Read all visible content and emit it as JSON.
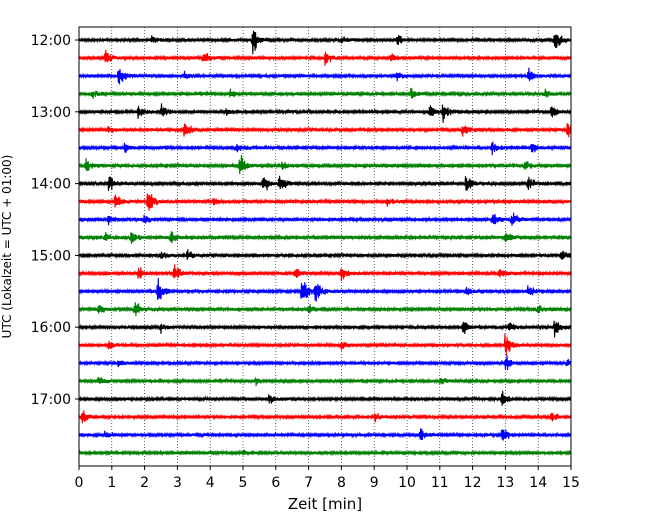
{
  "chart_data": {
    "type": "line",
    "title": "",
    "xlabel": "Zeit  [min]",
    "ylabel": "UTC (Lokalzeit = UTC + 01:00)",
    "xlim": [
      0,
      15
    ],
    "xticks": [
      0,
      1,
      2,
      3,
      4,
      5,
      6,
      7,
      8,
      9,
      10,
      11,
      12,
      13,
      14,
      15
    ],
    "grid": "vertical-dotted",
    "trace_duration_min": 15,
    "color_cycle": [
      "#000000",
      "#ff0000",
      "#0000ff",
      "#008000"
    ],
    "hour_labels": [
      {
        "label": "12:00",
        "trace_index": 0
      },
      {
        "label": "13:00",
        "trace_index": 4
      },
      {
        "label": "14:00",
        "trace_index": 8
      },
      {
        "label": "15:00",
        "trace_index": 12
      },
      {
        "label": "16:00",
        "trace_index": 16
      },
      {
        "label": "17:00",
        "trace_index": 20
      }
    ],
    "series": [
      {
        "start": "12:00",
        "events": [
          [
            2.2,
            0.3
          ],
          [
            5.3,
            1.0
          ],
          [
            8.0,
            0.3
          ],
          [
            9.7,
            0.35
          ],
          [
            14.5,
            0.9
          ]
        ]
      },
      {
        "start": "12:15",
        "events": [
          [
            0.8,
            0.5
          ],
          [
            3.8,
            0.5
          ],
          [
            7.5,
            0.5
          ],
          [
            9.5,
            0.3
          ]
        ]
      },
      {
        "start": "12:30",
        "events": [
          [
            1.2,
            0.9
          ],
          [
            3.2,
            0.3
          ],
          [
            9.7,
            0.3
          ],
          [
            13.7,
            0.5
          ]
        ]
      },
      {
        "start": "12:45",
        "events": [
          [
            0.4,
            0.3
          ],
          [
            4.6,
            0.35
          ],
          [
            10.1,
            0.4
          ],
          [
            14.2,
            0.3
          ]
        ]
      },
      {
        "start": "13:00",
        "events": [
          [
            1.8,
            0.5
          ],
          [
            2.5,
            0.5
          ],
          [
            4.5,
            0.3
          ],
          [
            10.7,
            0.5
          ],
          [
            11.1,
            0.7
          ],
          [
            14.4,
            0.5
          ]
        ]
      },
      {
        "start": "13:15",
        "events": [
          [
            0.9,
            0.3
          ],
          [
            3.2,
            0.7
          ],
          [
            11.7,
            0.5
          ],
          [
            14.9,
            0.5
          ]
        ]
      },
      {
        "start": "13:30",
        "events": [
          [
            1.4,
            0.3
          ],
          [
            4.8,
            0.4
          ],
          [
            12.6,
            0.5
          ],
          [
            13.8,
            0.4
          ]
        ]
      },
      {
        "start": "13:45",
        "events": [
          [
            0.2,
            0.5
          ],
          [
            4.9,
            0.9
          ],
          [
            6.2,
            0.3
          ],
          [
            13.6,
            0.35
          ]
        ]
      },
      {
        "start": "14:00",
        "events": [
          [
            0.9,
            0.6
          ],
          [
            5.6,
            0.8
          ],
          [
            6.1,
            0.7
          ],
          [
            11.8,
            0.8
          ],
          [
            13.7,
            0.5
          ]
        ]
      },
      {
        "start": "14:15",
        "events": [
          [
            1.1,
            0.5
          ],
          [
            2.1,
            0.9
          ],
          [
            4.1,
            0.3
          ],
          [
            9.4,
            0.3
          ]
        ]
      },
      {
        "start": "14:30",
        "events": [
          [
            0.9,
            0.3
          ],
          [
            2.0,
            0.3
          ],
          [
            12.6,
            0.6
          ],
          [
            13.2,
            0.6
          ]
        ]
      },
      {
        "start": "14:45",
        "events": [
          [
            0.8,
            0.3
          ],
          [
            1.6,
            0.5
          ],
          [
            2.8,
            0.5
          ],
          [
            13.0,
            0.5
          ]
        ]
      },
      {
        "start": "15:00",
        "events": [
          [
            2.5,
            0.3
          ],
          [
            3.3,
            0.4
          ],
          [
            14.7,
            0.5
          ]
        ]
      },
      {
        "start": "15:15",
        "events": [
          [
            1.8,
            0.5
          ],
          [
            2.9,
            0.6
          ],
          [
            6.6,
            0.4
          ],
          [
            8.0,
            0.5
          ],
          [
            12.8,
            0.5
          ]
        ]
      },
      {
        "start": "15:30",
        "events": [
          [
            2.4,
            1.0
          ],
          [
            6.8,
            1.0
          ],
          [
            7.2,
            0.9
          ],
          [
            11.8,
            0.3
          ],
          [
            13.7,
            0.5
          ]
        ]
      },
      {
        "start": "15:45",
        "events": [
          [
            0.6,
            0.4
          ],
          [
            1.7,
            0.6
          ],
          [
            7.0,
            0.3
          ],
          [
            14.0,
            0.3
          ]
        ]
      },
      {
        "start": "16:00",
        "events": [
          [
            2.5,
            0.3
          ],
          [
            11.7,
            0.5
          ],
          [
            13.1,
            0.35
          ],
          [
            14.5,
            0.6
          ]
        ]
      },
      {
        "start": "16:15",
        "events": [
          [
            0.9,
            0.3
          ],
          [
            8.0,
            0.3
          ],
          [
            13.0,
            1.0
          ]
        ]
      },
      {
        "start": "16:30",
        "events": [
          [
            1.2,
            0.3
          ],
          [
            13.0,
            0.6
          ],
          [
            14.9,
            0.3
          ]
        ]
      },
      {
        "start": "16:45",
        "events": [
          [
            0.6,
            0.3
          ],
          [
            5.4,
            0.3
          ],
          [
            11.0,
            0.3
          ]
        ]
      },
      {
        "start": "17:00",
        "events": [
          [
            5.8,
            0.4
          ],
          [
            12.9,
            0.5
          ]
        ]
      },
      {
        "start": "17:15",
        "events": [
          [
            0.1,
            0.5
          ],
          [
            9.0,
            0.3
          ],
          [
            14.4,
            0.4
          ]
        ]
      },
      {
        "start": "17:30",
        "events": [
          [
            0.8,
            0.3
          ],
          [
            10.4,
            0.5
          ],
          [
            12.9,
            0.6
          ]
        ]
      },
      {
        "start": "17:45",
        "events": [
          [
            5.0,
            0.2
          ]
        ]
      }
    ]
  }
}
